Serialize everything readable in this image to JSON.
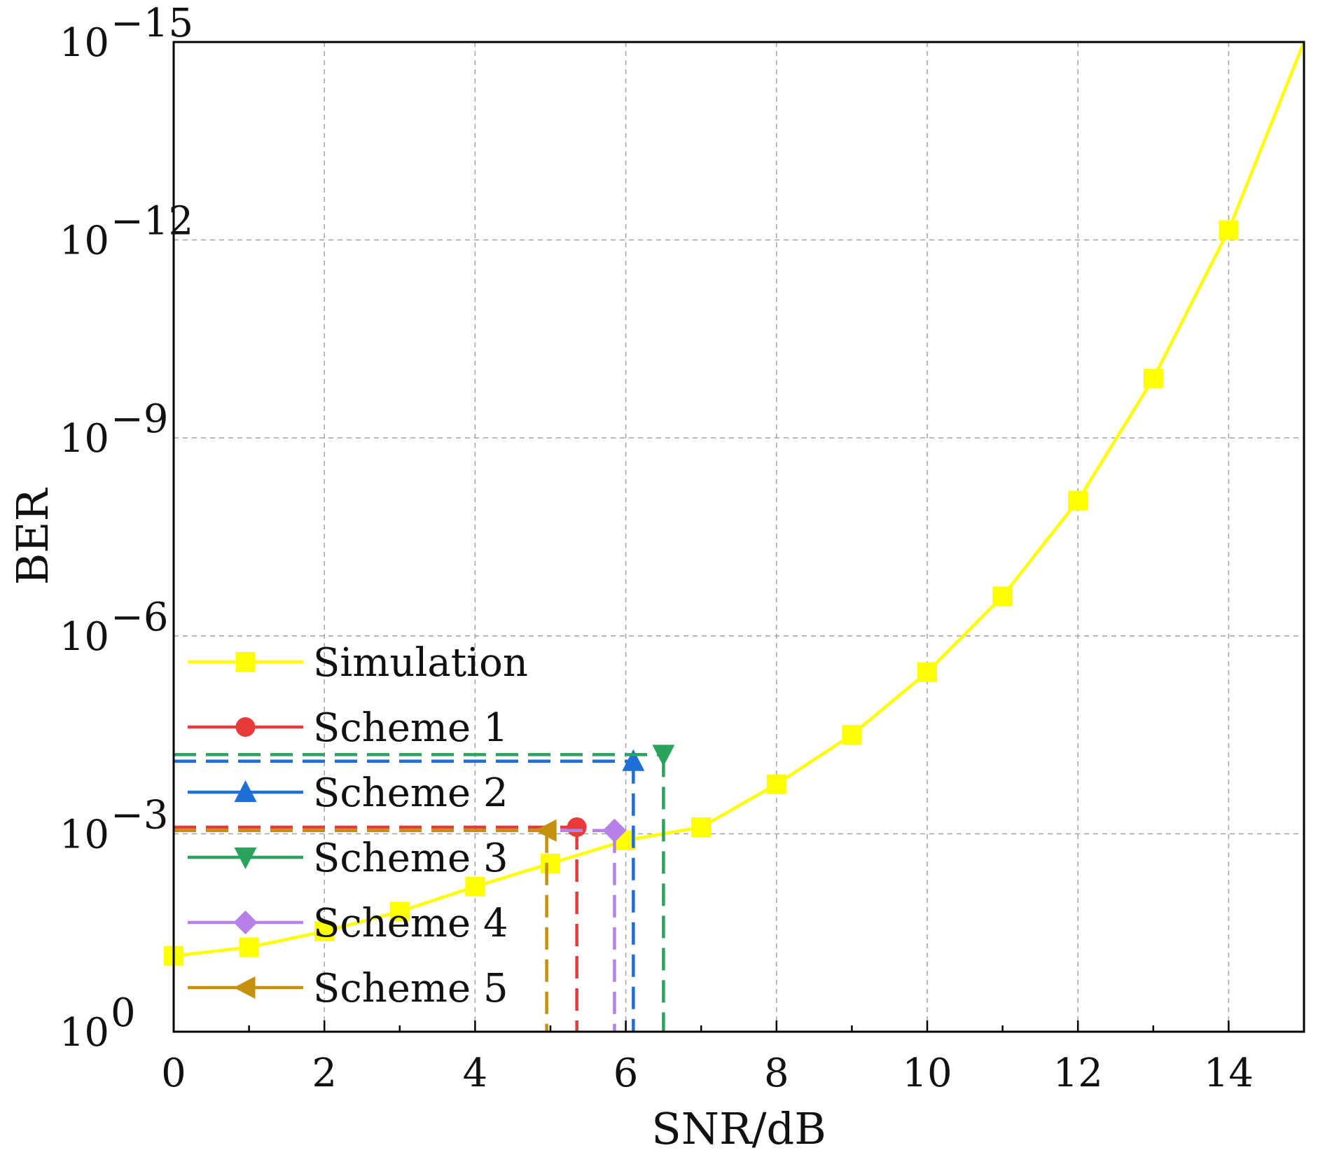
{
  "chart_data": {
    "type": "line",
    "title": "",
    "xlabel": "SNR/dB",
    "ylabel": "BER",
    "xlim": [
      0,
      15
    ],
    "ylim_log10": [
      -15,
      0
    ],
    "y_scale": "log",
    "grid": true,
    "x_ticks": [
      0,
      2,
      4,
      6,
      8,
      10,
      12,
      14
    ],
    "x_tick_labels": [
      "0",
      "2",
      "4",
      "6",
      "8",
      "10",
      "12",
      "14"
    ],
    "y_ticks_log10": [
      0,
      -3,
      -6,
      -9,
      -12,
      -15
    ],
    "y_tick_labels": [
      {
        "base": "10",
        "exp": "0"
      },
      {
        "base": "10",
        "exp": "−3"
      },
      {
        "base": "10",
        "exp": "−6"
      },
      {
        "base": "10",
        "exp": "−9"
      },
      {
        "base": "10",
        "exp": "−12"
      },
      {
        "base": "10",
        "exp": "−15"
      }
    ],
    "legend_position": "bottom-left",
    "series": [
      {
        "name": "Simulation",
        "color": "#ffff00",
        "marker": "square",
        "style": "solid",
        "x": [
          0,
          1,
          2,
          3,
          4,
          5,
          6,
          7,
          8,
          9,
          10,
          11,
          12,
          13,
          14,
          15
        ],
        "log10_y": [
          -1.15,
          -1.28,
          -1.52,
          -1.82,
          -2.2,
          -2.55,
          -2.9,
          -3.1,
          -3.75,
          -4.5,
          -5.45,
          -6.6,
          -8.05,
          -9.9,
          -12.15,
          -15
        ]
      },
      {
        "name": "Scheme 1",
        "color": "#e8393b",
        "marker": "circle",
        "style": "dashed",
        "x": 5.35,
        "log10_y": -3.1
      },
      {
        "name": "Scheme 2",
        "color": "#1f6fd6",
        "marker": "triangle-up",
        "style": "dashed",
        "x": 6.1,
        "log10_y": -4.1
      },
      {
        "name": "Scheme 3",
        "color": "#2aa35c",
        "marker": "triangle-down",
        "style": "dashed",
        "x": 6.5,
        "log10_y": -4.2
      },
      {
        "name": "Scheme 4",
        "color": "#b77fe8",
        "marker": "diamond",
        "style": "dashed",
        "x": 5.85,
        "log10_y": -3.05
      },
      {
        "name": "Scheme 5",
        "color": "#c4900e",
        "marker": "triangle-left",
        "style": "dashed",
        "x": 4.95,
        "log10_y": -3.05
      }
    ]
  }
}
